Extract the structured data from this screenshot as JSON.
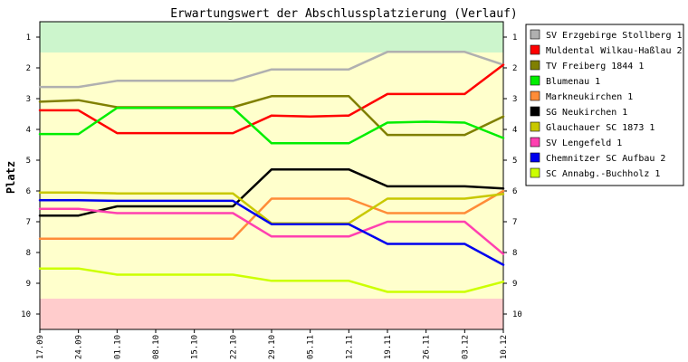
{
  "chart_data": {
    "type": "line",
    "title": "Erwartungswert der Abschlussplatzierung (Verlauf)",
    "ylabel": "Platz",
    "xlabel": "",
    "ylim": [
      10.5,
      0.5
    ],
    "y_ticks": [
      "1",
      "2",
      "3",
      "4",
      "5",
      "6",
      "7",
      "8",
      "9",
      "10"
    ],
    "x": [
      "17.09",
      "24.09",
      "01.10",
      "08.10",
      "15.10",
      "22.10",
      "29.10",
      "05.11",
      "12.11",
      "19.11",
      "26.11",
      "03.12",
      "10.12"
    ],
    "bands": [
      {
        "from": 0.5,
        "to": 1.5,
        "color": "#ccf5cc"
      },
      {
        "from": 1.5,
        "to": 9.5,
        "color": "#ffffcc"
      },
      {
        "from": 9.5,
        "to": 10.5,
        "color": "#ffcccc"
      }
    ],
    "legend_position": "top-right",
    "series": [
      {
        "name": "SV Erzgebirge Stollberg 1",
        "color": "#b0b0b0",
        "values": [
          2.62,
          2.62,
          2.42,
          2.42,
          2.42,
          2.42,
          2.05,
          2.05,
          2.05,
          1.48,
          1.48,
          1.48,
          1.9
        ]
      },
      {
        "name": "Muldental Wilkau-Haßlau 2",
        "color": "#ff0000",
        "values": [
          3.38,
          3.38,
          4.12,
          4.12,
          4.12,
          4.12,
          3.55,
          3.58,
          3.55,
          2.85,
          2.85,
          2.85,
          1.9
        ]
      },
      {
        "name": "TV Freiberg 1844 1",
        "color": "#808000",
        "values": [
          3.1,
          3.05,
          3.28,
          3.28,
          3.28,
          3.28,
          2.92,
          2.92,
          2.92,
          4.18,
          4.18,
          4.18,
          3.58
        ]
      },
      {
        "name": "Blumenau 1",
        "color": "#00ee00",
        "values": [
          4.15,
          4.15,
          3.3,
          3.3,
          3.3,
          3.3,
          4.45,
          4.45,
          4.45,
          3.78,
          3.75,
          3.78,
          4.28
        ]
      },
      {
        "name": "Markneukirchen 1",
        "color": "#ff8c38",
        "values": [
          7.55,
          7.55,
          7.55,
          7.55,
          7.55,
          7.55,
          6.25,
          6.25,
          6.25,
          6.72,
          6.72,
          6.72,
          6.0
        ]
      },
      {
        "name": "SG Neukirchen 1",
        "color": "#000000",
        "values": [
          6.8,
          6.8,
          6.5,
          6.5,
          6.5,
          6.5,
          5.3,
          5.3,
          5.3,
          5.85,
          5.85,
          5.85,
          5.92
        ]
      },
      {
        "name": "Glauchauer SC 1873 1",
        "color": "#c8c800",
        "values": [
          6.05,
          6.05,
          6.08,
          6.08,
          6.08,
          6.08,
          7.05,
          7.05,
          7.05,
          6.25,
          6.25,
          6.25,
          6.1
        ]
      },
      {
        "name": "SV Lengefeld 1",
        "color": "#ff40b0",
        "values": [
          6.58,
          6.58,
          6.72,
          6.72,
          6.72,
          6.72,
          7.48,
          7.48,
          7.48,
          7.0,
          7.0,
          7.0,
          8.05
        ]
      },
      {
        "name": "Chemnitzer SC Aufbau 2",
        "color": "#0000ee",
        "values": [
          6.3,
          6.3,
          6.32,
          6.32,
          6.32,
          6.32,
          7.08,
          7.08,
          7.08,
          7.72,
          7.72,
          7.72,
          8.4
        ]
      },
      {
        "name": "SC Annabg.-Buchholz 1",
        "color": "#ccff00",
        "values": [
          8.52,
          8.52,
          8.72,
          8.72,
          8.72,
          8.72,
          8.92,
          8.92,
          8.92,
          9.28,
          9.28,
          9.28,
          8.95
        ]
      }
    ]
  }
}
